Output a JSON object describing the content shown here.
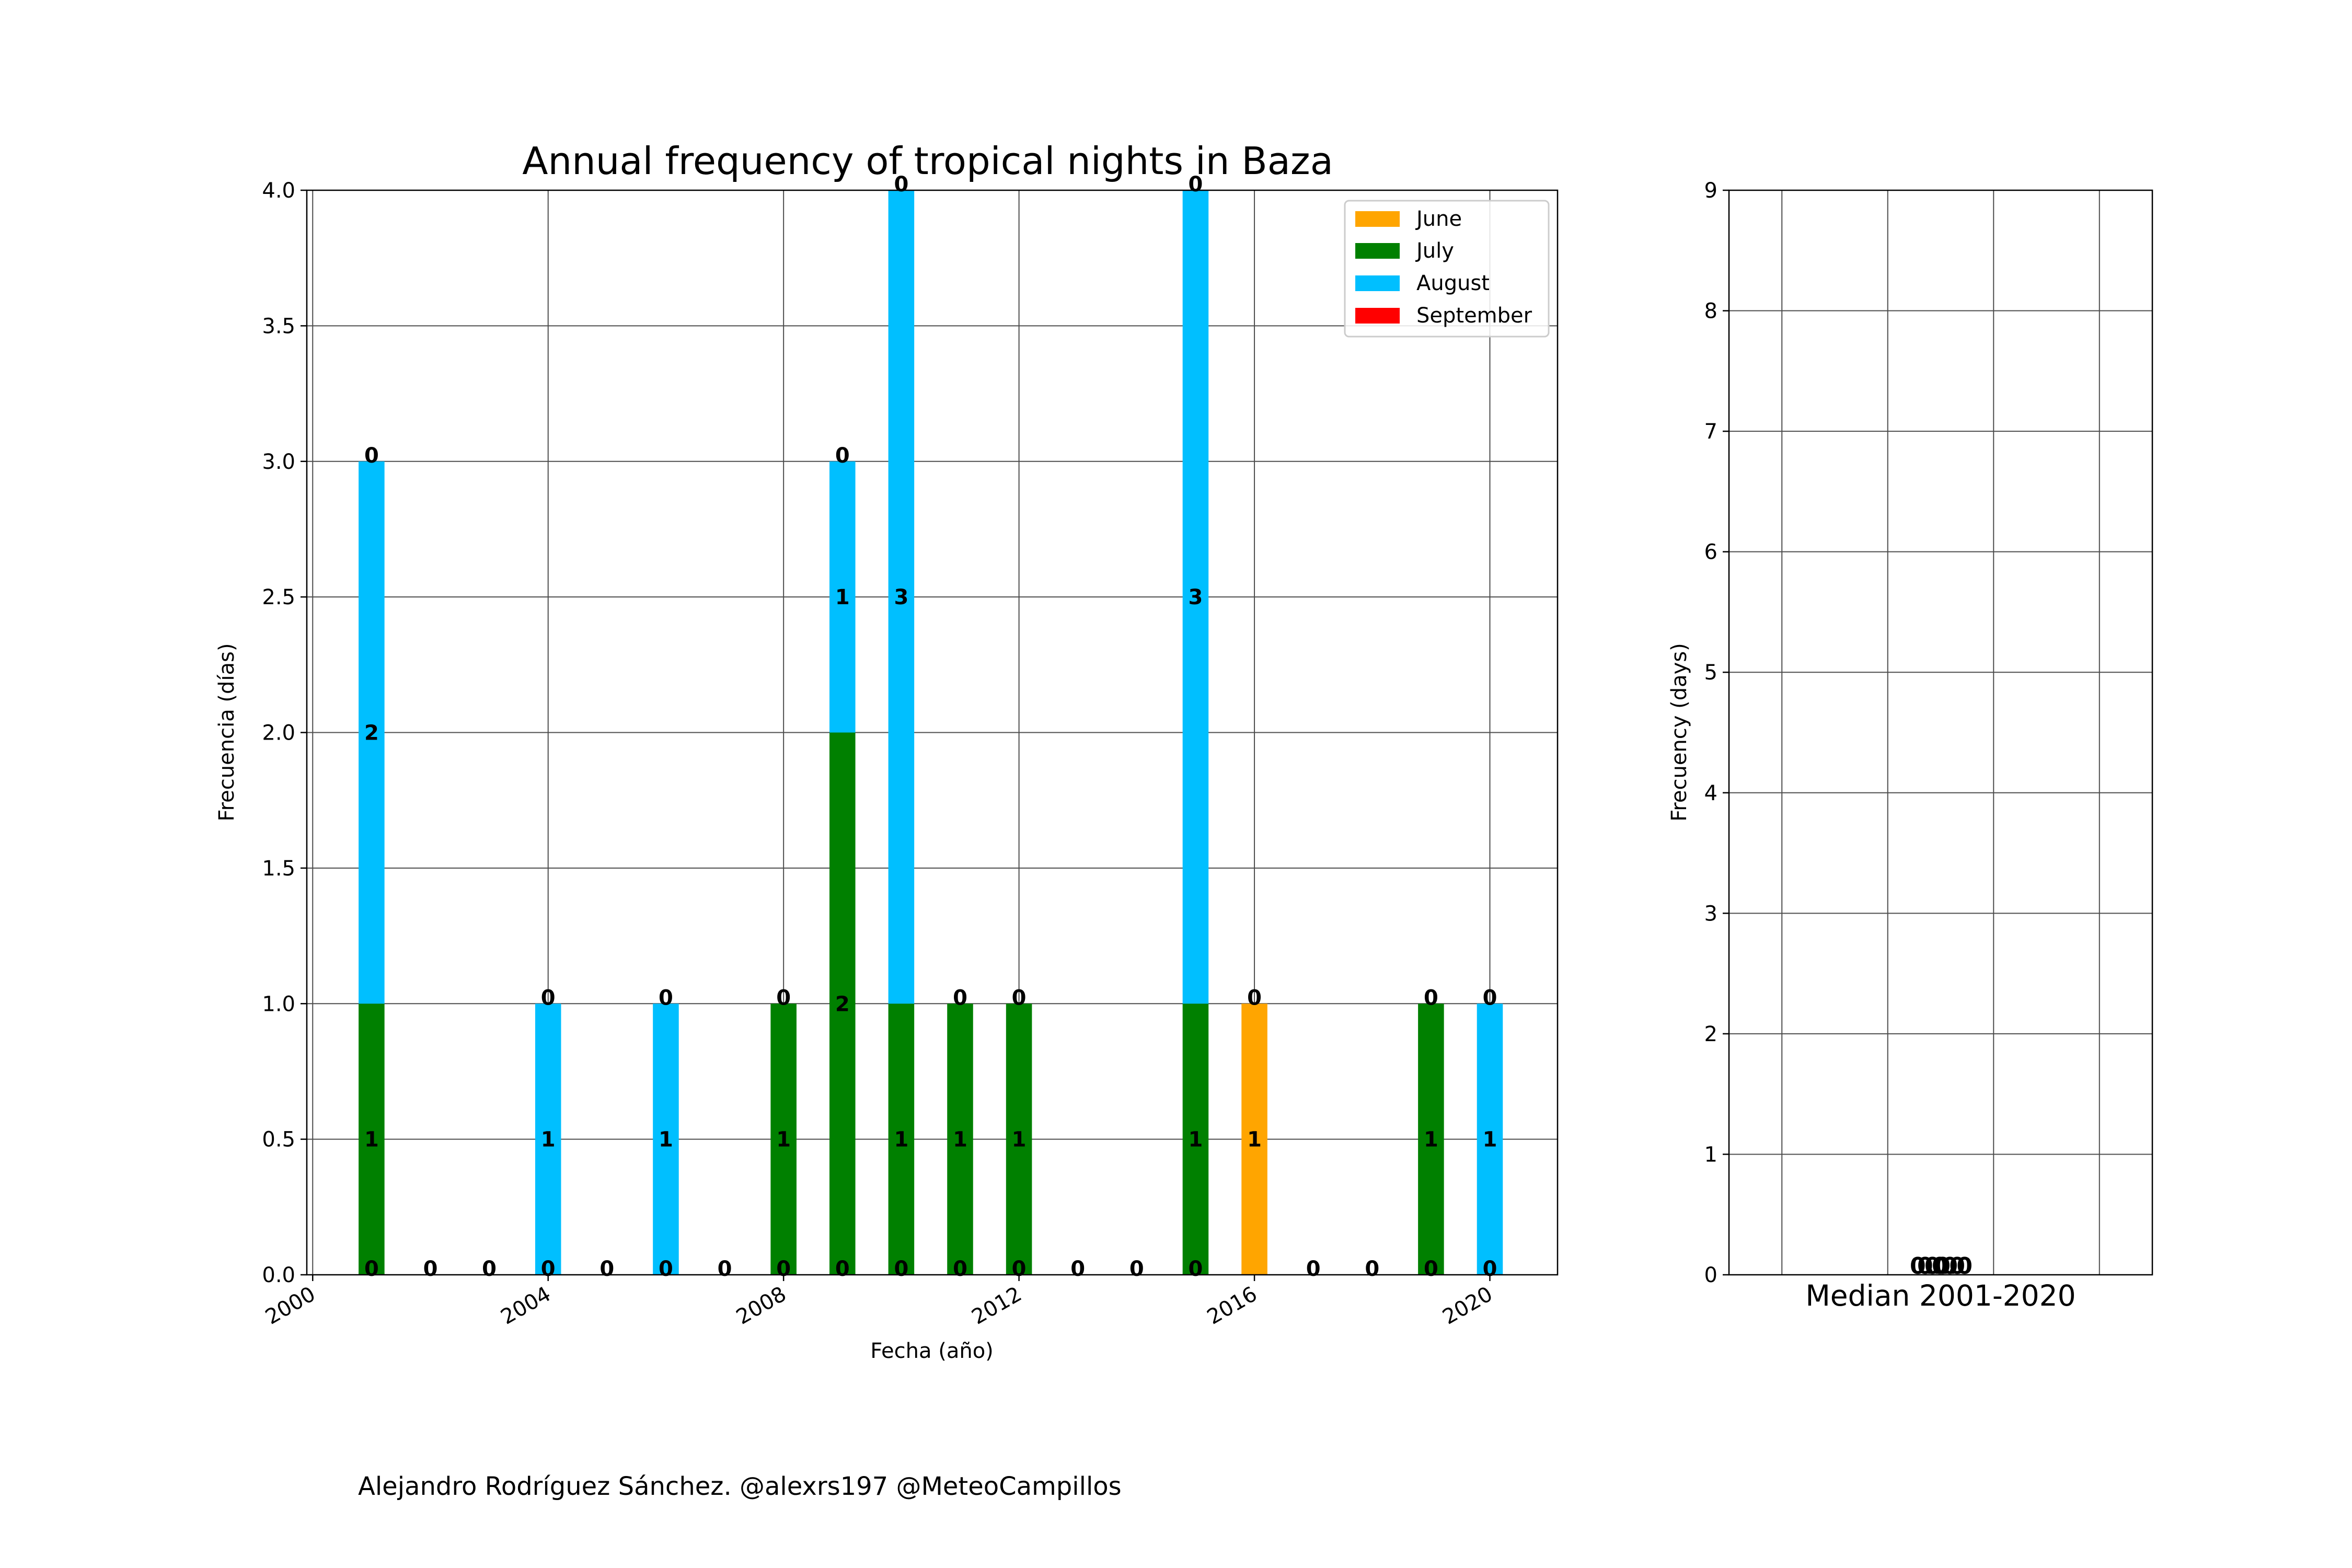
{
  "footer": "Alejandro Rodríguez Sánchez. @alexrs197 @MeteoCampillos",
  "colors": {
    "June": "#ffa500",
    "July": "#008000",
    "August": "#00bfff",
    "September": "#ff0000",
    "grid": "#4d4d4d"
  },
  "chart_data": [
    {
      "type": "bar",
      "stacked": true,
      "title": "Annual frequency of tropical nights in Baza",
      "xlabel": "Fecha (año)",
      "ylabel": "Frecuencia (días)",
      "xlim": [
        1999.9,
        2021.15
      ],
      "ylim": [
        0,
        4
      ],
      "xticks": [
        "2000",
        "2004",
        "2008",
        "2012",
        "2016",
        "2020"
      ],
      "yticks": [
        "0.0",
        "0.5",
        "1.0",
        "1.5",
        "2.0",
        "2.5",
        "3.0",
        "3.5",
        "4.0"
      ],
      "grid": true,
      "legend": {
        "location": "upper right",
        "entries": [
          "June",
          "July",
          "August",
          "September"
        ]
      },
      "x": [
        2001,
        2002,
        2003,
        2004,
        2005,
        2006,
        2007,
        2008,
        2009,
        2010,
        2011,
        2012,
        2013,
        2014,
        2015,
        2016,
        2017,
        2018,
        2019,
        2020
      ],
      "series": [
        {
          "name": "June",
          "values": [
            0,
            0,
            0,
            0,
            0,
            0,
            0,
            0,
            0,
            0,
            0,
            0,
            0,
            0,
            0,
            1,
            0,
            0,
            0,
            0
          ]
        },
        {
          "name": "July",
          "values": [
            1,
            0,
            0,
            0,
            0,
            0,
            0,
            1,
            2,
            1,
            1,
            1,
            0,
            0,
            1,
            0,
            0,
            0,
            1,
            0
          ]
        },
        {
          "name": "August",
          "values": [
            2,
            0,
            0,
            1,
            0,
            1,
            0,
            0,
            1,
            3,
            0,
            0,
            0,
            0,
            3,
            0,
            0,
            0,
            0,
            1
          ]
        },
        {
          "name": "September",
          "values": [
            0,
            0,
            0,
            0,
            0,
            0,
            0,
            0,
            0,
            0,
            0,
            0,
            0,
            0,
            0,
            0,
            0,
            0,
            0,
            0
          ]
        }
      ],
      "bar_labels": [
        {
          "x": 2001,
          "labels": [
            "0",
            "1",
            "2",
            "0"
          ]
        },
        {
          "x": 2002,
          "labels": [
            "0"
          ]
        },
        {
          "x": 2003,
          "labels": [
            "0"
          ]
        },
        {
          "x": 2004,
          "labels": [
            "0",
            "1",
            "0"
          ]
        },
        {
          "x": 2005,
          "labels": [
            "0"
          ]
        },
        {
          "x": 2006,
          "labels": [
            "0",
            "1",
            "0"
          ]
        },
        {
          "x": 2007,
          "labels": [
            "0"
          ]
        },
        {
          "x": 2008,
          "labels": [
            "0",
            "1",
            "0"
          ]
        },
        {
          "x": 2009,
          "labels": [
            "0",
            "2",
            "1",
            "0"
          ]
        },
        {
          "x": 2010,
          "labels": [
            "0",
            "1",
            "3",
            "0"
          ]
        },
        {
          "x": 2011,
          "labels": [
            "0",
            "1",
            "0"
          ]
        },
        {
          "x": 2012,
          "labels": [
            "0",
            "1",
            "0"
          ]
        },
        {
          "x": 2013,
          "labels": [
            "0"
          ]
        },
        {
          "x": 2014,
          "labels": [
            "0"
          ]
        },
        {
          "x": 2015,
          "labels": [
            "0",
            "1",
            "3",
            "0"
          ]
        },
        {
          "x": 2016,
          "labels": [
            "1",
            "0"
          ]
        },
        {
          "x": 2017,
          "labels": [
            "0"
          ]
        },
        {
          "x": 2018,
          "labels": [
            "0"
          ]
        },
        {
          "x": 2019,
          "labels": [
            "0",
            "1",
            "0"
          ]
        },
        {
          "x": 2020,
          "labels": [
            "0",
            "1",
            "0"
          ]
        }
      ]
    },
    {
      "type": "bar",
      "stacked": true,
      "title": "",
      "xlabel": "Median 2001-2020",
      "ylabel": "Frecuency (days)",
      "ylim": [
        0,
        9
      ],
      "yticks": [
        "0",
        "1",
        "2",
        "3",
        "4",
        "5",
        "6",
        "7",
        "8",
        "9"
      ],
      "grid": true,
      "categories": [
        "Median 2001-2020"
      ],
      "series": [
        {
          "name": "June",
          "values": [
            0
          ]
        },
        {
          "name": "July",
          "values": [
            0
          ]
        },
        {
          "name": "August",
          "values": [
            0
          ]
        },
        {
          "name": "September",
          "values": [
            0
          ]
        }
      ],
      "bar_labels": [
        "0.0",
        "0.0",
        "0.0",
        "0.0"
      ]
    }
  ]
}
